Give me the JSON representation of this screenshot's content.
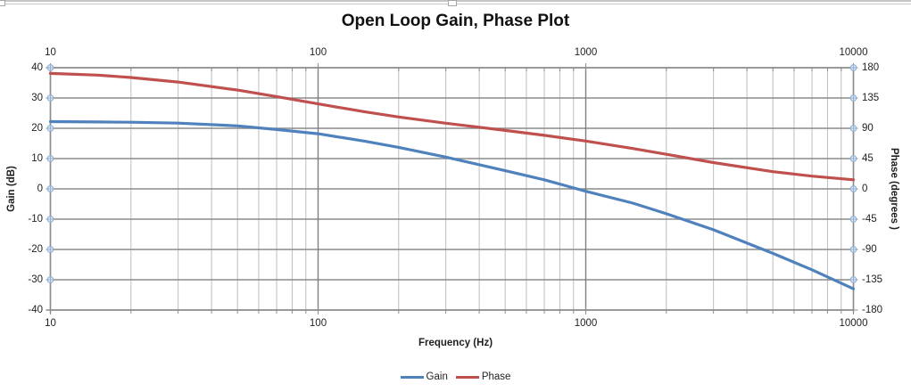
{
  "chart_border": {
    "color": "#c6c6c6",
    "handle_color": "#a6a6a6"
  },
  "chart_data": {
    "type": "line",
    "title": "Open Loop Gain, Phase Plot",
    "xlabel": "Frequency (Hz)",
    "ylabel_left": "Gain (dB)",
    "ylabel_right": "Phase (degrees )",
    "x_scale": "log",
    "x_range": [
      10,
      10000
    ],
    "x_ticks": [
      10,
      100,
      1000,
      10000
    ],
    "y_left_range": [
      -40,
      40
    ],
    "y_left_ticks": [
      40,
      30,
      20,
      10,
      0,
      -10,
      -20,
      -30,
      -40
    ],
    "y_right_range": [
      -180,
      180
    ],
    "y_right_ticks": [
      180,
      135,
      90,
      45,
      0,
      -45,
      -90,
      -135,
      -180
    ],
    "grid": true,
    "minor_x_gridlines": true,
    "legend_position": "bottom",
    "colors": {
      "major_grid": "#7f7f7f",
      "minor_grid": "#bdbdbd",
      "horizontal_grid": "#8c8c8c",
      "axis": "#8c8c8c",
      "marker_stroke": "#8fadd1",
      "marker_fill": "#d9e4f3"
    },
    "series": [
      {
        "name": "Gain",
        "axis": "left",
        "color": "#4F81BD",
        "x": [
          10,
          15,
          20,
          30,
          50,
          70,
          100,
          150,
          200,
          300,
          500,
          700,
          1000,
          1500,
          2000,
          3000,
          5000,
          7000,
          10000
        ],
        "y": [
          22.2,
          22.1,
          22.0,
          21.7,
          20.8,
          19.6,
          18.2,
          15.7,
          13.7,
          10.5,
          6.0,
          3.0,
          -0.8,
          -4.7,
          -8.2,
          -13.5,
          -21.3,
          -26.7,
          -33.0
        ]
      },
      {
        "name": "Phase",
        "axis": "right",
        "color": "#C0504D",
        "x": [
          10,
          15,
          20,
          30,
          50,
          70,
          100,
          150,
          200,
          300,
          500,
          700,
          1000,
          1500,
          2000,
          3000,
          5000,
          7000,
          10000
        ],
        "y": [
          171.5,
          169.0,
          165.5,
          158.7,
          146.8,
          137.1,
          126.2,
          114.4,
          106.8,
          97.5,
          86.8,
          79.6,
          71.1,
          60.0,
          51.3,
          39.0,
          25.6,
          18.9,
          13.5
        ]
      }
    ]
  },
  "legend": {
    "items": [
      {
        "label": "Gain",
        "color": "#4F81BD"
      },
      {
        "label": "Phase",
        "color": "#C0504D"
      }
    ]
  }
}
